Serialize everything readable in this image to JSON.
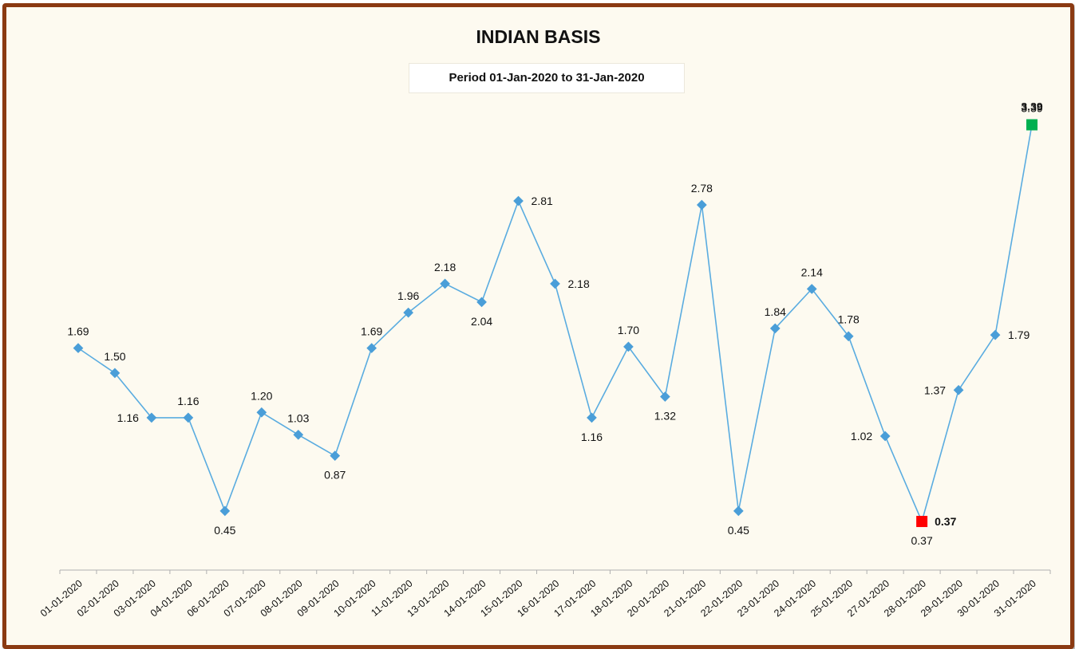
{
  "chart_data": {
    "type": "line",
    "title": "INDIAN BASIS",
    "subtitle": "Period 01-Jan-2020 to 31-Jan-2020",
    "categories": [
      "01-01-2020",
      "02-01-2020",
      "03-01-2020",
      "04-01-2020",
      "06-01-2020",
      "07-01-2020",
      "08-01-2020",
      "09-01-2020",
      "10-01-2020",
      "11-01-2020",
      "13-01-2020",
      "14-01-2020",
      "15-01-2020",
      "16-01-2020",
      "17-01-2020",
      "18-01-2020",
      "20-01-2020",
      "21-01-2020",
      "22-01-2020",
      "23-01-2020",
      "24-01-2020",
      "25-01-2020",
      "27-01-2020",
      "28-01-2020",
      "29-01-2020",
      "30-01-2020",
      "31-01-2020"
    ],
    "values": [
      1.69,
      1.5,
      1.16,
      1.16,
      0.45,
      1.2,
      1.03,
      0.87,
      1.69,
      1.96,
      2.18,
      2.04,
      2.81,
      2.18,
      1.16,
      1.7,
      1.32,
      2.78,
      0.45,
      1.84,
      2.14,
      1.78,
      1.02,
      0.37,
      1.37,
      1.79,
      3.39
    ],
    "data_labels": [
      "1.69",
      "1.50",
      "1.16",
      "1.16",
      "0.45",
      "1.20",
      "1.03",
      "0.87",
      "1.69",
      "1.96",
      "2.18",
      "2.04",
      "2.81",
      "2.18",
      "1.16",
      "1.70",
      "1.32",
      "2.78",
      "0.45",
      "1.84",
      "2.14",
      "1.78",
      "1.02",
      "0.37",
      "1.37",
      "1.79",
      "3.39"
    ],
    "label_positions": [
      "above",
      "above",
      "left",
      "above",
      "below",
      "above",
      "above",
      "below",
      "above",
      "above",
      "above",
      "below",
      "right",
      "right",
      "below",
      "above",
      "below",
      "above",
      "below",
      "above",
      "above",
      "above",
      "left",
      "below",
      "left",
      "right",
      "above"
    ],
    "min_highlight": {
      "index": 23,
      "label": "0.37",
      "color": "#ff0000"
    },
    "max_highlight": {
      "index": 26,
      "label": "3.39",
      "color": "#00b050"
    },
    "line_color": "#5aace0",
    "marker_color": "#4a9ed8",
    "axis_color": "#b0b0b0",
    "grid": false,
    "legend": "none",
    "ylim": [
      0,
      4
    ]
  }
}
